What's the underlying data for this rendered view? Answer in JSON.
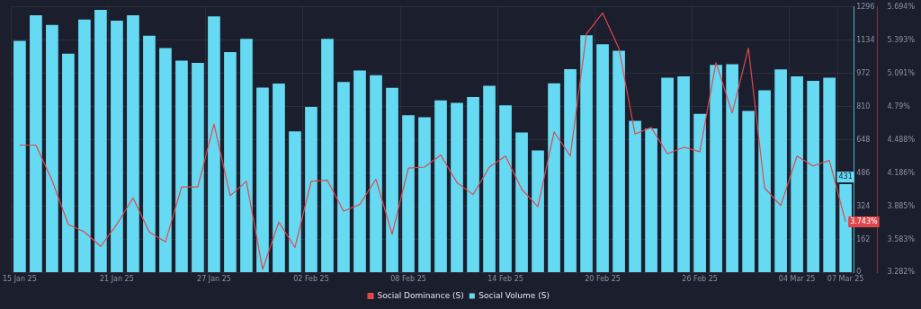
{
  "chart_data": {
    "type": "bar",
    "categories": [
      "15 Jan 25",
      null,
      null,
      null,
      null,
      null,
      "21 Jan 25",
      null,
      null,
      null,
      null,
      null,
      "27 Jan 25",
      null,
      null,
      null,
      null,
      null,
      "02 Feb 25",
      null,
      null,
      null,
      null,
      null,
      "08 Feb 25",
      null,
      null,
      null,
      null,
      null,
      "14 Feb 25",
      null,
      null,
      null,
      null,
      null,
      "20 Feb 25",
      null,
      null,
      null,
      null,
      null,
      "26 Feb 25",
      null,
      null,
      null,
      null,
      null,
      "04 Mar 25",
      null,
      null,
      "07 Mar 25"
    ],
    "series": [
      {
        "name": "Social Dominance (S)",
        "type": "line",
        "axis": "y2",
        "color": "#e0474c",
        "values": [
          4.44,
          4.44,
          4.12,
          3.72,
          3.65,
          3.52,
          3.72,
          3.96,
          3.65,
          3.56,
          4.06,
          4.06,
          4.63,
          3.98,
          4.11,
          3.31,
          3.74,
          3.51,
          4.11,
          4.12,
          3.84,
          3.9,
          4.13,
          3.63,
          4.23,
          4.24,
          4.35,
          4.1,
          3.99,
          4.24,
          4.34,
          4.04,
          3.88,
          4.56,
          4.34,
          5.45,
          5.64,
          5.32,
          4.54,
          4.6,
          4.36,
          4.42,
          4.38,
          5.19,
          4.73,
          5.32,
          4.05,
          3.89,
          4.34,
          4.25,
          4.3,
          3.743
        ],
        "value_labels": [
          null,
          null,
          null,
          null,
          null,
          null,
          null,
          null,
          null,
          null,
          null,
          null,
          null,
          null,
          null,
          null,
          null,
          null,
          null,
          null,
          null,
          null,
          null,
          null,
          null,
          null,
          null,
          null,
          null,
          null,
          null,
          null,
          null,
          null,
          null,
          null,
          null,
          null,
          null,
          null,
          null,
          null,
          null,
          null,
          null,
          null,
          null,
          null,
          null,
          null,
          null,
          "3.743%"
        ]
      },
      {
        "name": "Social Volume (S)",
        "color": "#66daf3",
        "values": [
          1131,
          1256,
          1208,
          1068,
          1235,
          1282,
          1229,
          1256,
          1156,
          1096,
          1034,
          1023,
          1250,
          1076,
          1141,
          903,
          923,
          689,
          809,
          1141,
          930,
          986,
          963,
          902,
          768,
          758,
          840,
          828,
          857,
          912,
          816,
          684,
          596,
          924,
          993,
          1158,
          1114,
          1082,
          740,
          703,
          951,
          958,
          775,
          1013,
          1017,
          789,
          890,
          992,
          958,
          936,
          951,
          431
        ],
        "value_labels": [
          null,
          null,
          null,
          null,
          null,
          null,
          null,
          null,
          null,
          null,
          null,
          null,
          null,
          null,
          null,
          null,
          null,
          null,
          null,
          null,
          null,
          null,
          null,
          null,
          null,
          null,
          null,
          null,
          null,
          null,
          null,
          null,
          null,
          null,
          null,
          null,
          null,
          null,
          null,
          null,
          null,
          null,
          null,
          null,
          null,
          null,
          null,
          null,
          null,
          null,
          null,
          "431"
        ]
      }
    ],
    "ylim": [
      0,
      1296
    ],
    "yticks": [
      0,
      162,
      324,
      486,
      648,
      810,
      972,
      1134,
      1296
    ],
    "y2lim": [
      3.282,
      5.694
    ],
    "y2ticks": [
      {
        "value": 3.282,
        "label": "3.282%"
      },
      {
        "value": 3.583,
        "label": "3.583%"
      },
      {
        "value": 3.885,
        "label": "3.885%"
      },
      {
        "value": 4.186,
        "label": "4.186%"
      },
      {
        "value": 4.488,
        "label": "4.488%"
      },
      {
        "value": 4.79,
        "label": "4.79%"
      },
      {
        "value": 5.091,
        "label": "5.091%"
      },
      {
        "value": 5.393,
        "label": "5.393%"
      },
      {
        "value": 5.694,
        "label": "5.694%"
      }
    ],
    "grid": true,
    "legend": "bottom"
  }
}
